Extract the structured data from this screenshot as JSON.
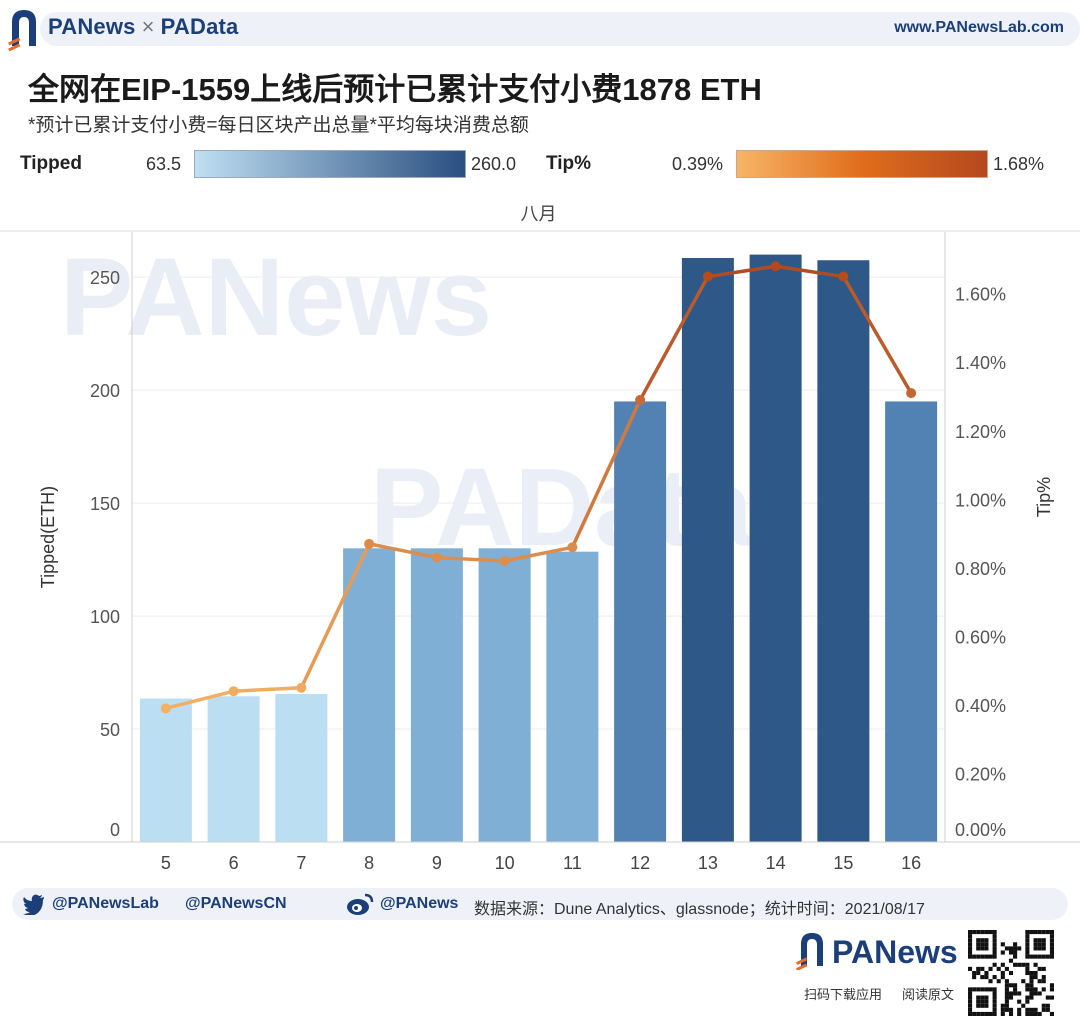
{
  "header": {
    "brand_left": "PANews",
    "brand_sep": "×",
    "brand_right": "PAData",
    "site": "www.PANewsLab.com"
  },
  "title": "全网在EIP-1559上线后预计已累计支付小费1878 ETH",
  "subtitle": "*预计已累计支付小费=每日区块产出总量*平均每块消费总额",
  "legend": {
    "tipped_label": "Tipped",
    "tipped_min": "63.5",
    "tipped_max": "260.0",
    "tipped_colors": [
      "#bfdff2",
      "#2a4f80"
    ],
    "tip_label": "Tip%",
    "tip_min": "0.39%",
    "tip_max": "1.68%",
    "tip_colors": [
      "#f7b566",
      "#b5481e"
    ]
  },
  "colors": {
    "bar_light": "#bcdef2",
    "bar_mid": "#80afd6",
    "bar_blue": "#5282b3",
    "bar_dark": "#2d5887",
    "line_light": "#f4b063",
    "line_dark": "#b04b20"
  },
  "chart_data": {
    "type": "bar",
    "column_header": "八月",
    "categories": [
      "5",
      "6",
      "7",
      "8",
      "9",
      "10",
      "11",
      "12",
      "13",
      "14",
      "15",
      "16"
    ],
    "series": [
      {
        "values": [
          63.5,
          64.5,
          65.5,
          130,
          130,
          130,
          128.5,
          195,
          258.5,
          260,
          257.5,
          195
        ],
        "axis": "left"
      },
      {
        "values": [
          0.39,
          0.44,
          0.45,
          0.87,
          0.83,
          0.82,
          0.86,
          1.29,
          1.65,
          1.68,
          1.65,
          1.31
        ],
        "axis": "right"
      }
    ],
    "ylabel": "Tipped(ETH)",
    "y2label": "Tip%",
    "ylim": [
      0,
      270
    ],
    "y2lim": [
      0,
      1.78
    ],
    "yticks": [
      0,
      50,
      100,
      150,
      200,
      250
    ],
    "y2ticks": [
      "0.00%",
      "0.20%",
      "0.40%",
      "0.60%",
      "0.80%",
      "1.00%",
      "1.20%",
      "1.40%",
      "1.60%"
    ],
    "grid": true
  },
  "watermarks": [
    "PANews",
    "PAData"
  ],
  "footer": {
    "twitter1": "@PANewsLab",
    "twitter2": "@PANewsCN",
    "weibo": "@PANews",
    "source": "数据来源：Dune Analytics、glassnode；统计时间：2021/08/17"
  },
  "bottom_logo": {
    "name": "PANews",
    "left_caption": "扫码下载应用",
    "right_caption": "阅读原文"
  }
}
